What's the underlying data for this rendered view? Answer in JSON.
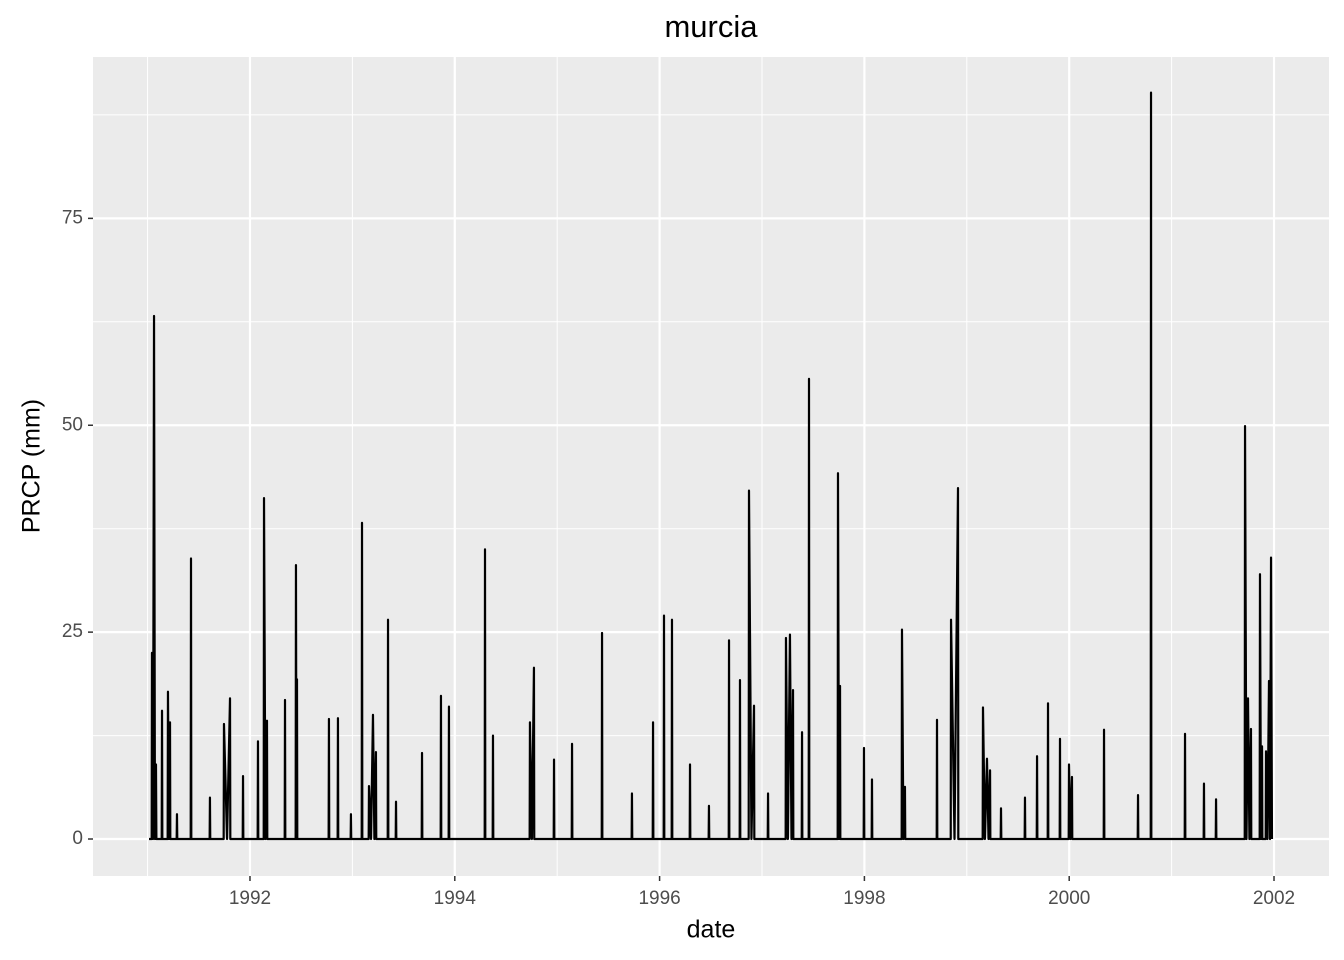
{
  "chart_data": {
    "type": "line",
    "title": "murcia",
    "x_label": "date",
    "y_label": "PRCP (mm)",
    "xlim": [
      1990.467,
      2002.537
    ],
    "xticks": [
      1992,
      1994,
      1996,
      1998,
      2000,
      2002
    ],
    "ylim": [
      -4.47,
      94.5
    ],
    "yticks": [
      0,
      25,
      50,
      75
    ],
    "grid": true,
    "series": [
      {
        "name": "PRCP",
        "color": "#000000",
        "x": [
          1991.014,
          1991.04,
          1991.043,
          1991.053,
          1991.063,
          1991.072,
          1991.082,
          1991.086,
          1991.138,
          1991.141,
          1991.144,
          1991.196,
          1991.199,
          1991.209,
          1991.219,
          1991.222,
          1991.284,
          1991.287,
          1991.29,
          1991.421,
          1991.424,
          1991.427,
          1991.606,
          1991.609,
          1991.612,
          1991.743,
          1991.746,
          1991.776,
          1991.805,
          1991.808,
          1991.929,
          1991.932,
          1991.935,
          1992.075,
          1992.078,
          1992.081,
          1992.134,
          1992.137,
          1992.151,
          1992.166,
          1992.169,
          1992.339,
          1992.342,
          1992.345,
          1992.446,
          1992.449,
          1992.454,
          1992.459,
          1992.462,
          1992.768,
          1992.771,
          1992.774,
          1992.856,
          1992.859,
          1992.862,
          1992.983,
          1992.986,
          1992.989,
          1993.091,
          1993.094,
          1993.097,
          1993.159,
          1993.162,
          1993.182,
          1993.201,
          1993.215,
          1993.23,
          1993.233,
          1993.345,
          1993.348,
          1993.351,
          1993.423,
          1993.426,
          1993.429,
          1993.677,
          1993.68,
          1993.683,
          1993.862,
          1993.865,
          1993.868,
          1993.94,
          1993.943,
          1993.946,
          1994.292,
          1994.295,
          1994.298,
          1994.37,
          1994.373,
          1994.376,
          1994.731,
          1994.734,
          1994.753,
          1994.773,
          1994.776,
          1994.966,
          1994.969,
          1994.972,
          1995.142,
          1995.145,
          1995.148,
          1995.435,
          1995.438,
          1995.441,
          1995.727,
          1995.73,
          1995.733,
          1995.933,
          1995.936,
          1995.939,
          1996.04,
          1996.043,
          1996.046,
          1996.118,
          1996.121,
          1996.124,
          1996.294,
          1996.297,
          1996.3,
          1996.479,
          1996.482,
          1996.485,
          1996.675,
          1996.678,
          1996.681,
          1996.782,
          1996.785,
          1996.788,
          1996.87,
          1996.873,
          1996.897,
          1996.922,
          1996.925,
          1997.056,
          1997.059,
          1997.062,
          1997.231,
          1997.234,
          1997.253,
          1997.273,
          1997.288,
          1997.303,
          1997.306,
          1997.388,
          1997.391,
          1997.394,
          1997.456,
          1997.459,
          1997.462,
          1997.739,
          1997.742,
          1997.752,
          1997.762,
          1997.765,
          1997.993,
          1997.996,
          1997.999,
          1998.071,
          1998.074,
          1998.077,
          1998.364,
          1998.367,
          1998.381,
          1998.396,
          1998.399,
          1998.706,
          1998.709,
          1998.712,
          1998.843,
          1998.846,
          1998.88,
          1998.914,
          1998.917,
          1999.155,
          1999.158,
          1999.177,
          1999.197,
          1999.212,
          1999.227,
          1999.23,
          1999.331,
          1999.334,
          1999.337,
          1999.565,
          1999.568,
          1999.571,
          1999.683,
          1999.686,
          1999.689,
          1999.79,
          1999.793,
          1999.796,
          1999.907,
          1999.91,
          1999.913,
          1999.995,
          1999.998,
          2000.012,
          2000.027,
          2000.03,
          2000.337,
          2000.34,
          2000.343,
          2000.669,
          2000.672,
          2000.675,
          2000.796,
          2000.799,
          2000.802,
          2001.128,
          2001.131,
          2001.134,
          2001.313,
          2001.316,
          2001.319,
          2001.431,
          2001.434,
          2001.437,
          2001.714,
          2001.717,
          2001.731,
          2001.746,
          2001.76,
          2001.775,
          2001.778,
          2001.86,
          2001.863,
          2001.873,
          2001.883,
          2001.886,
          2001.919,
          2001.922,
          2001.936,
          2001.951,
          2001.961,
          2001.971,
          2001.98
        ],
        "values": [
          0,
          0,
          22.5,
          0,
          63.2,
          0,
          9,
          0,
          0,
          15.5,
          0,
          0,
          17.8,
          0,
          14.1,
          0,
          0,
          3,
          0,
          0,
          33.9,
          0,
          0,
          5,
          0,
          0,
          13.9,
          0,
          17,
          0,
          0,
          7.6,
          0,
          0,
          11.8,
          0,
          0,
          41.2,
          0,
          14.3,
          0,
          0,
          16.8,
          0,
          0,
          33.1,
          0,
          19.3,
          0,
          0,
          14.5,
          0,
          0,
          14.6,
          0,
          0,
          3,
          0,
          0,
          38.2,
          0,
          0,
          6.4,
          0,
          15,
          0,
          10.5,
          0,
          0,
          26.5,
          0,
          0,
          4.5,
          0,
          0,
          10.4,
          0,
          0,
          17.3,
          0,
          0,
          16,
          0,
          0,
          35,
          0,
          0,
          12.5,
          0,
          0,
          14.1,
          0,
          20.7,
          0,
          0,
          9.6,
          0,
          0,
          11.5,
          0,
          0,
          24.9,
          0,
          0,
          5.5,
          0,
          0,
          14.1,
          0,
          0,
          27,
          0,
          0,
          26.5,
          0,
          0,
          9,
          0,
          0,
          4,
          0,
          0,
          24,
          0,
          0,
          19.2,
          0,
          0,
          42.1,
          0,
          16.1,
          0,
          0,
          5.5,
          0,
          0,
          24.3,
          0,
          24.7,
          0,
          18,
          0,
          0,
          12.9,
          0,
          0,
          55.6,
          0,
          0,
          44.2,
          0,
          18.5,
          0,
          0,
          11,
          0,
          0,
          7.2,
          0,
          0,
          25.3,
          0,
          6.3,
          0,
          0,
          14.4,
          0,
          0,
          26.5,
          0,
          42.4,
          0,
          0,
          15.9,
          0,
          9.7,
          0,
          8.3,
          0,
          0,
          3.7,
          0,
          0,
          5,
          0,
          0,
          10,
          0,
          0,
          16.4,
          0,
          0,
          12.1,
          0,
          0,
          9,
          0,
          7.5,
          0,
          0,
          13.2,
          0,
          0,
          5.3,
          0,
          0,
          90.2,
          0,
          0,
          12.7,
          0,
          0,
          6.7,
          0,
          0,
          4.8,
          0,
          0,
          49.9,
          0,
          17,
          0,
          13.3,
          0,
          0,
          32,
          0,
          11.2,
          0,
          0,
          10.6,
          0,
          19.1,
          0,
          34,
          0
        ]
      }
    ]
  }
}
